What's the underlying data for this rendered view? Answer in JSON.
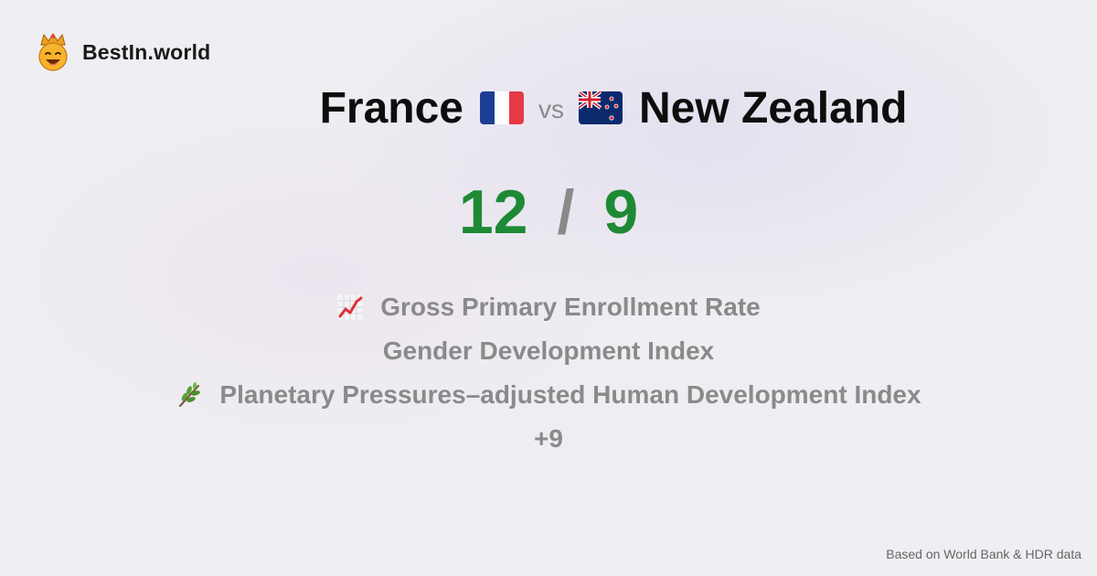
{
  "brand": {
    "logo_icon": "crown-smiley-icon",
    "name": "BestIn.world"
  },
  "comparison": {
    "country_a": "France",
    "flag_a": "france-flag-icon",
    "vs": "vs",
    "country_b": "New Zealand",
    "flag_b": "new-zealand-flag-icon"
  },
  "score": {
    "a": "12",
    "separator": "/",
    "b": "9",
    "color": "#1e8a35"
  },
  "metrics": [
    {
      "icon": "chart-increasing-icon",
      "label": "Gross Primary Enrollment Rate"
    },
    {
      "icon": "",
      "label": "Gender Development Index"
    },
    {
      "icon": "herb-icon",
      "label": "Planetary Pressures–adjusted Human Development Index"
    },
    {
      "icon": "",
      "label": "+9"
    }
  ],
  "footer": {
    "source": "Based on World Bank & HDR data"
  }
}
